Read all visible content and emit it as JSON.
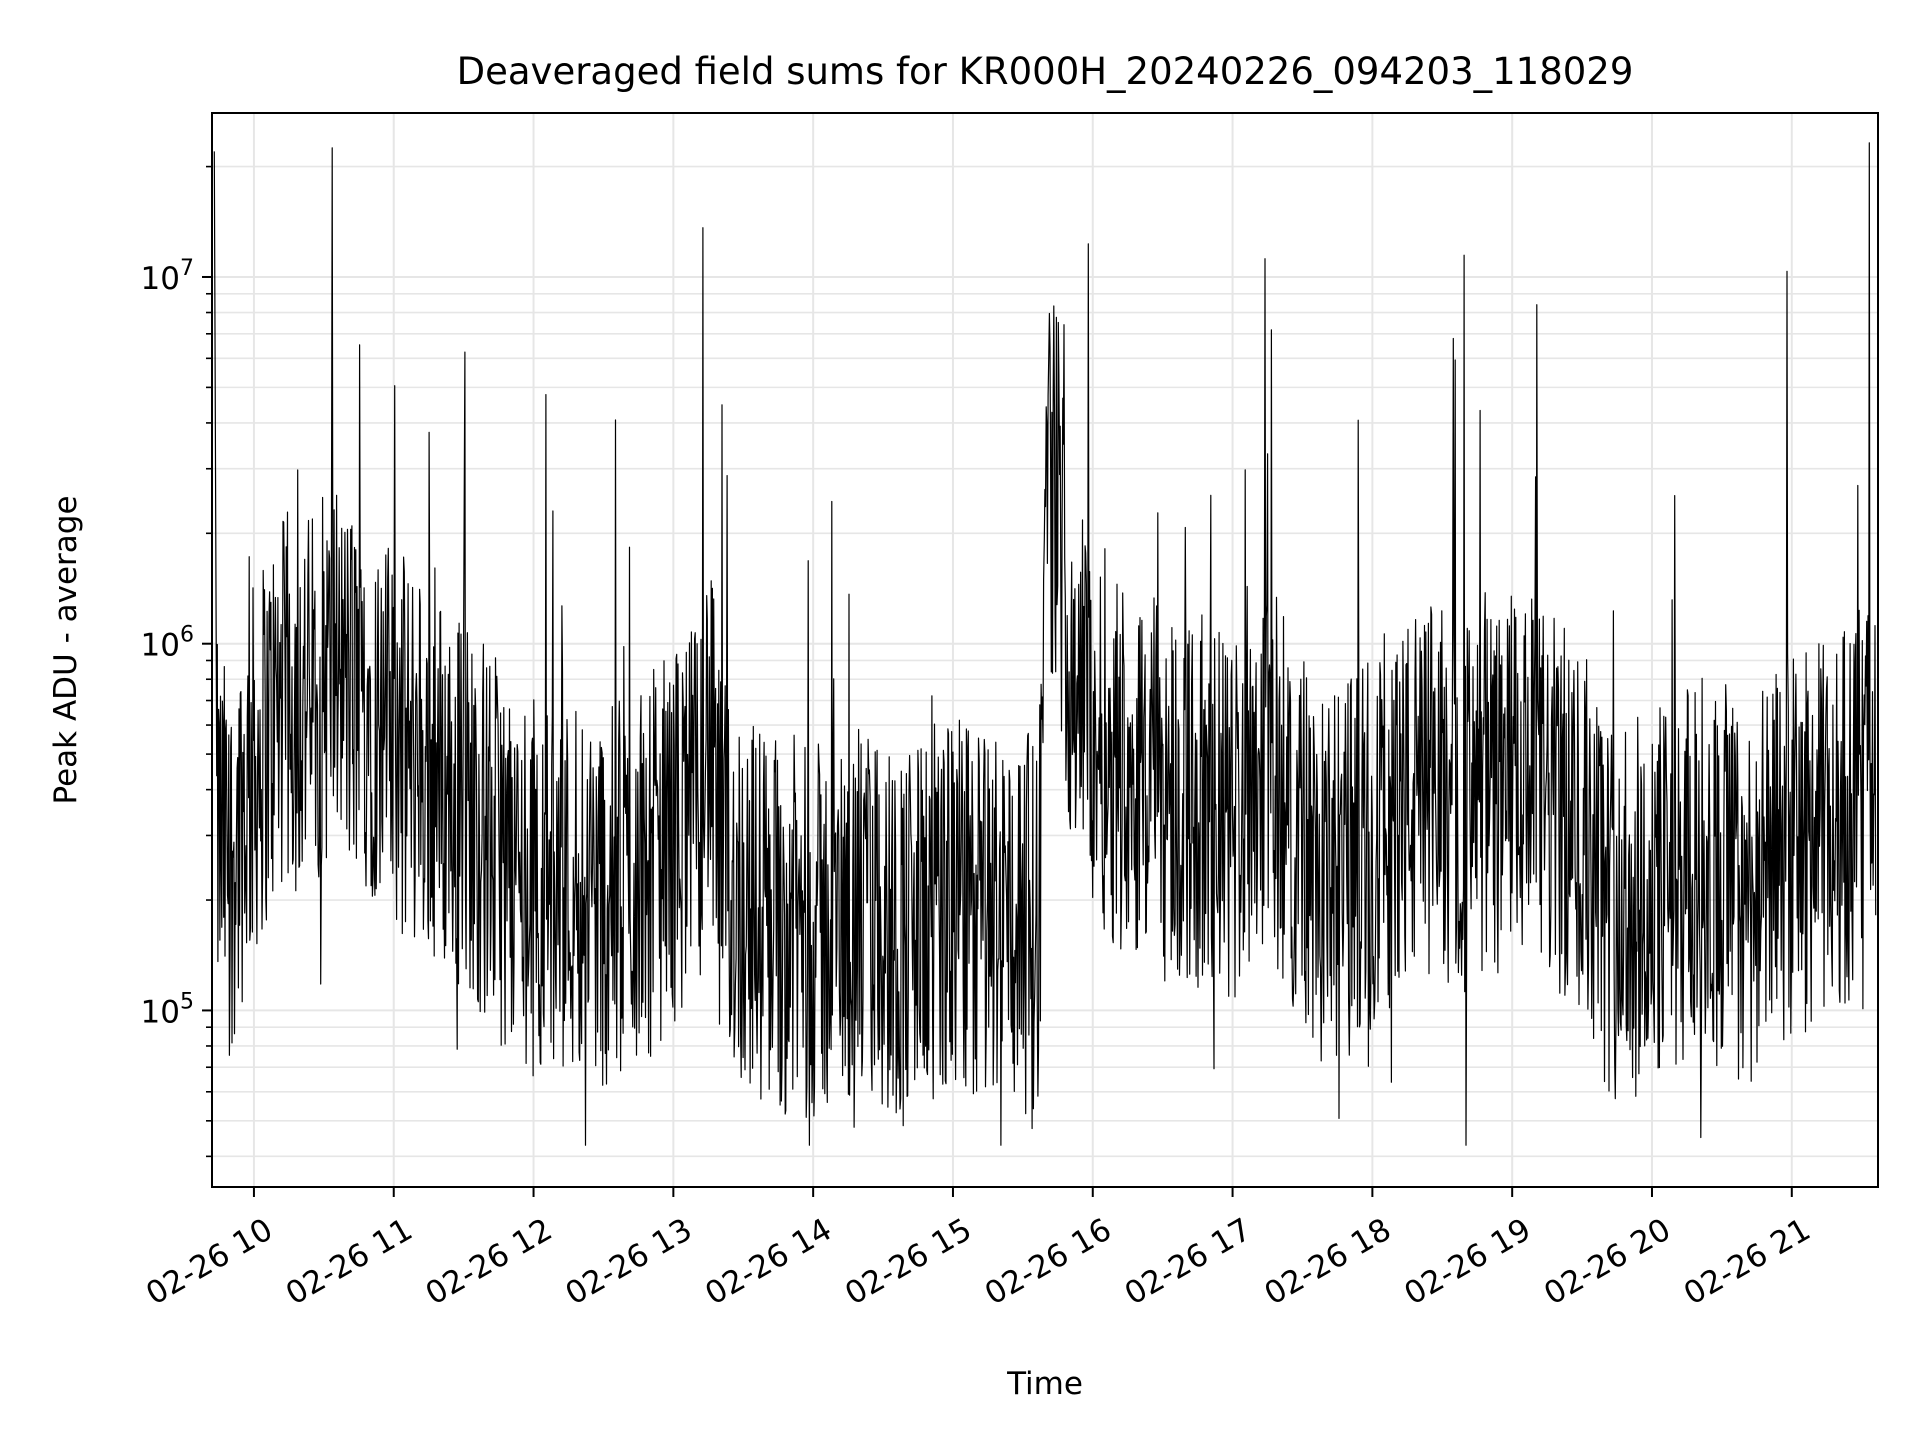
{
  "chart_data": {
    "type": "line",
    "title": "Deaveraged field sums for KR000H_20240226_094203_118029",
    "xlabel": "Time",
    "ylabel": "Peak ADU - average",
    "xscale": "time",
    "yscale": "log",
    "grid": true,
    "legend": "none",
    "line_color": "#000000",
    "grid_color": "#e6e6e6",
    "xlim": [
      "2024-02-26 09:42",
      "2024-02-26 21:37"
    ],
    "ylim": [
      33000,
      28000000
    ],
    "x_ticks": [
      {
        "value": "2024-02-26 10:00",
        "label": "02-26 10"
      },
      {
        "value": "2024-02-26 11:00",
        "label": "02-26 11"
      },
      {
        "value": "2024-02-26 12:00",
        "label": "02-26 12"
      },
      {
        "value": "2024-02-26 13:00",
        "label": "02-26 13"
      },
      {
        "value": "2024-02-26 14:00",
        "label": "02-26 14"
      },
      {
        "value": "2024-02-26 15:00",
        "label": "02-26 15"
      },
      {
        "value": "2024-02-26 16:00",
        "label": "02-26 16"
      },
      {
        "value": "2024-02-26 17:00",
        "label": "02-26 17"
      },
      {
        "value": "2024-02-26 18:00",
        "label": "02-26 18"
      },
      {
        "value": "2024-02-26 19:00",
        "label": "02-26 19"
      },
      {
        "value": "2024-02-26 20:00",
        "label": "02-26 20"
      },
      {
        "value": "2024-02-26 21:00",
        "label": "02-26 21"
      }
    ],
    "y_ticks": [
      {
        "value": 100000,
        "base": "10",
        "exp": "5"
      },
      {
        "value": 1000000,
        "base": "10",
        "exp": "6"
      },
      {
        "value": 10000000,
        "base": "10",
        "exp": "7"
      }
    ],
    "series": [
      {
        "x": [
          "2024-02-26 09:43",
          "2024-02-26 09:45",
          "2024-02-26 09:50",
          "2024-02-26 09:55",
          "2024-02-26 10:00",
          "2024-02-26 10:05",
          "2024-02-26 10:10",
          "2024-02-26 10:15",
          "2024-02-26 10:20",
          "2024-02-26 10:25",
          "2024-02-26 10:30",
          "2024-02-26 10:35",
          "2024-02-26 10:40",
          "2024-02-26 10:45",
          "2024-02-26 10:50",
          "2024-02-26 10:55",
          "2024-02-26 11:00",
          "2024-02-26 11:10",
          "2024-02-26 11:20",
          "2024-02-26 11:30",
          "2024-02-26 11:40",
          "2024-02-26 11:50",
          "2024-02-26 12:00",
          "2024-02-26 12:10",
          "2024-02-26 12:20",
          "2024-02-26 12:30",
          "2024-02-26 12:40",
          "2024-02-26 12:50",
          "2024-02-26 13:00",
          "2024-02-26 13:10",
          "2024-02-26 13:15",
          "2024-02-26 13:20",
          "2024-02-26 13:30",
          "2024-02-26 13:40",
          "2024-02-26 13:50",
          "2024-02-26 14:00",
          "2024-02-26 14:10",
          "2024-02-26 14:20",
          "2024-02-26 14:30",
          "2024-02-26 14:40",
          "2024-02-26 14:50",
          "2024-02-26 15:00",
          "2024-02-26 15:10",
          "2024-02-26 15:20",
          "2024-02-26 15:30",
          "2024-02-26 15:37",
          "2024-02-26 15:40",
          "2024-02-26 15:45",
          "2024-02-26 15:50",
          "2024-02-26 16:00",
          "2024-02-26 16:10",
          "2024-02-26 16:20",
          "2024-02-26 16:30",
          "2024-02-26 16:40",
          "2024-02-26 16:50",
          "2024-02-26 17:00",
          "2024-02-26 17:10",
          "2024-02-26 17:20",
          "2024-02-26 17:30",
          "2024-02-26 17:40",
          "2024-02-26 17:50",
          "2024-02-26 18:00",
          "2024-02-26 18:10",
          "2024-02-26 18:20",
          "2024-02-26 18:30",
          "2024-02-26 18:40",
          "2024-02-26 18:50",
          "2024-02-26 19:00",
          "2024-02-26 19:10",
          "2024-02-26 19:20",
          "2024-02-26 19:30",
          "2024-02-26 19:40",
          "2024-02-26 19:50",
          "2024-02-26 20:00",
          "2024-02-26 20:10",
          "2024-02-26 20:20",
          "2024-02-26 20:30",
          "2024-02-26 20:40",
          "2024-02-26 20:50",
          "2024-02-26 21:00",
          "2024-02-26 21:10",
          "2024-02-26 21:20",
          "2024-02-26 21:30",
          "2024-02-26 21:36"
        ],
        "y": [
          22000000,
          300000,
          250000,
          350000,
          450000,
          550000,
          650000,
          700000,
          680000,
          720000,
          800000,
          900000,
          750000,
          700000,
          680000,
          600000,
          550000,
          480000,
          420000,
          380000,
          300000,
          250000,
          220000,
          210000,
          230000,
          200000,
          220000,
          250000,
          300000,
          350000,
          600000,
          250000,
          200000,
          180000,
          170000,
          160000,
          170000,
          180000,
          170000,
          160000,
          180000,
          190000,
          180000,
          190000,
          170000,
          180000,
          3000000,
          2500000,
          1000000,
          600000,
          500000,
          450000,
          400000,
          380000,
          350000,
          320000,
          500000,
          400000,
          300000,
          200000,
          250000,
          300000,
          350000,
          380000,
          400000,
          350000,
          380000,
          420000,
          400000,
          350000,
          300000,
          200000,
          180000,
          200000,
          220000,
          250000,
          230000,
          200000,
          240000,
          280000,
          300000,
          320000,
          400000,
          550000
        ]
      }
    ]
  }
}
